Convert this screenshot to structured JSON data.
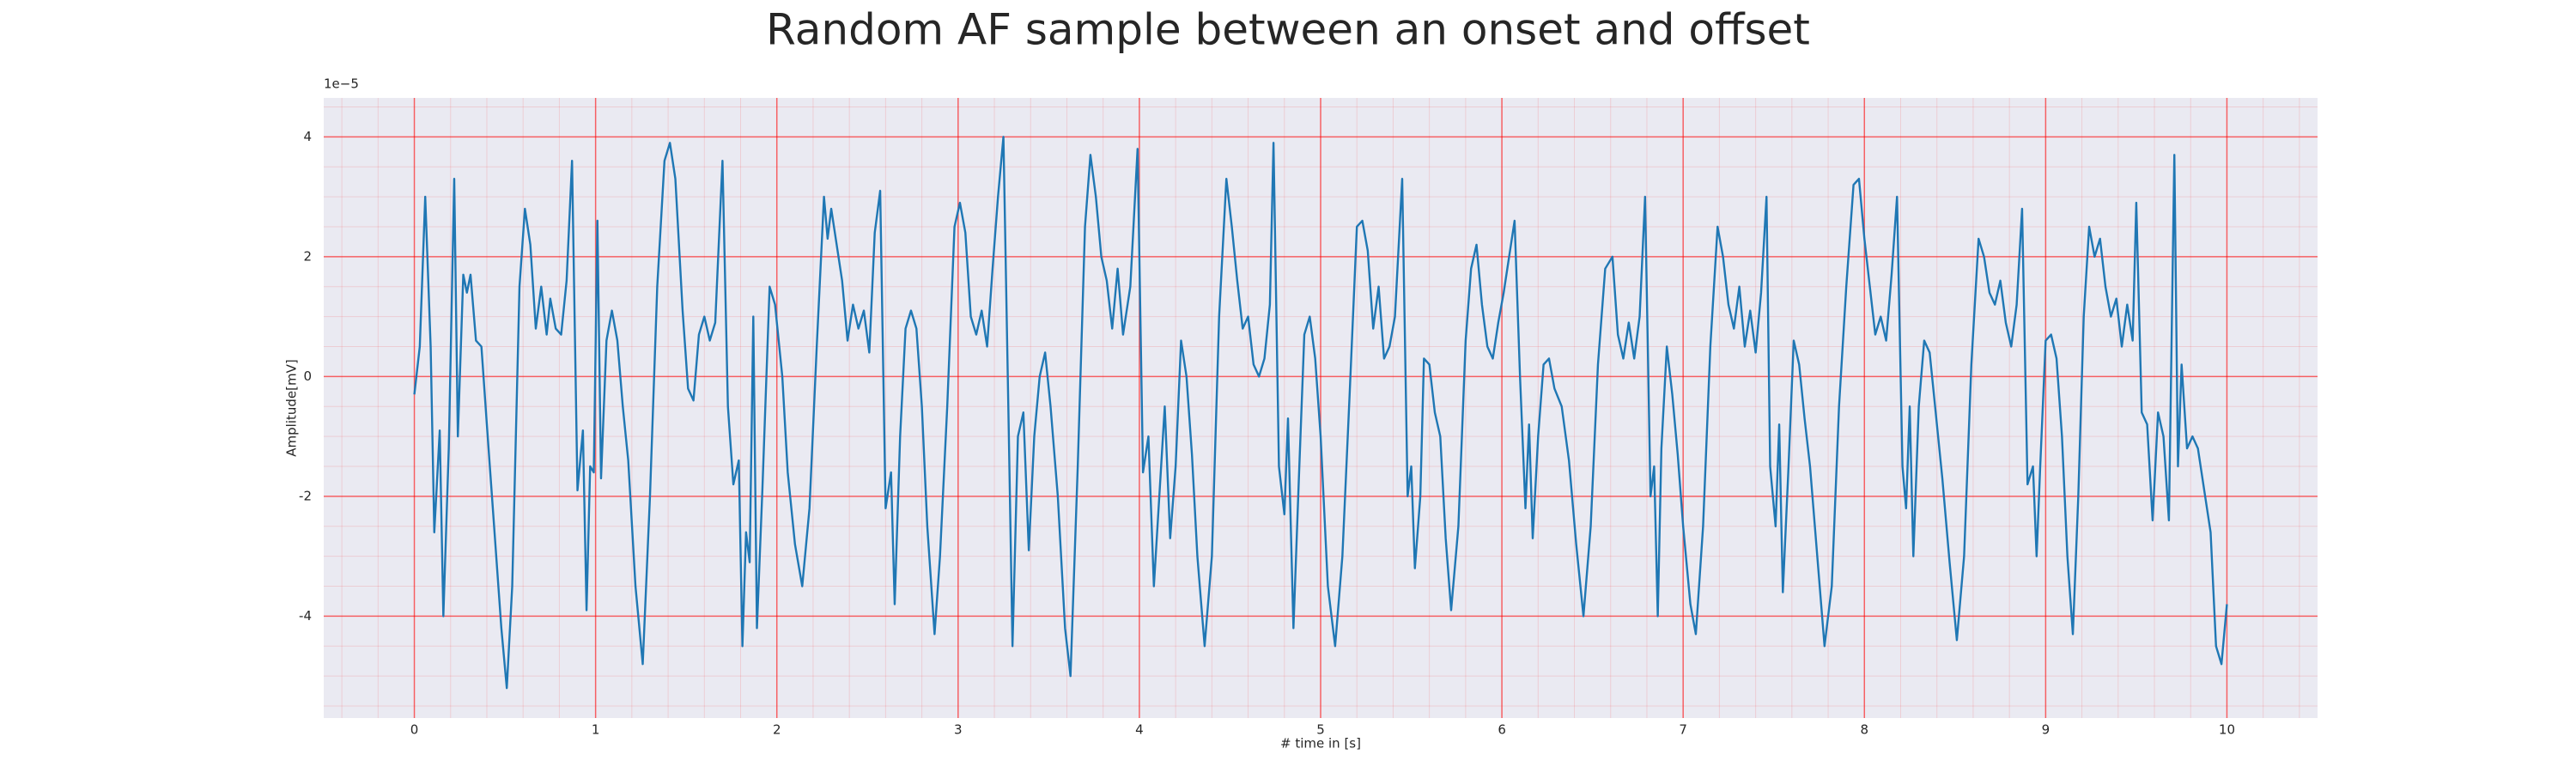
{
  "chart_data": {
    "type": "line",
    "title": "Random AF sample between an onset and offset",
    "x_label": "# time in [s]",
    "y_label": "Amplitude[mV]",
    "y_offset_label": "1e−5",
    "color": "#1f77b4",
    "grid": true,
    "minor_grid": true,
    "grid_color": "#ff0000",
    "background": "#eaeaf2",
    "xlim": [
      -0.5,
      10.5
    ],
    "ylim": [
      -5.7,
      4.65
    ],
    "xticks": [
      0,
      1,
      2,
      3,
      4,
      5,
      6,
      7,
      8,
      9,
      10
    ],
    "yticks": [
      -4,
      -2,
      0,
      2,
      4
    ],
    "x": [
      0.0,
      0.03,
      0.06,
      0.09,
      0.11,
      0.14,
      0.16,
      0.19,
      0.22,
      0.24,
      0.27,
      0.29,
      0.31,
      0.34,
      0.37,
      0.4,
      0.44,
      0.48,
      0.51,
      0.54,
      0.58,
      0.61,
      0.64,
      0.67,
      0.7,
      0.73,
      0.75,
      0.78,
      0.81,
      0.84,
      0.87,
      0.9,
      0.93,
      0.95,
      0.97,
      0.99,
      1.01,
      1.03,
      1.06,
      1.09,
      1.12,
      1.15,
      1.18,
      1.22,
      1.26,
      1.3,
      1.34,
      1.38,
      1.41,
      1.44,
      1.48,
      1.51,
      1.54,
      1.57,
      1.6,
      1.63,
      1.66,
      1.7,
      1.73,
      1.76,
      1.79,
      1.81,
      1.83,
      1.85,
      1.87,
      1.89,
      1.92,
      1.96,
      1.99,
      2.03,
      2.06,
      2.1,
      2.14,
      2.18,
      2.22,
      2.26,
      2.28,
      2.3,
      2.33,
      2.36,
      2.39,
      2.42,
      2.45,
      2.48,
      2.51,
      2.54,
      2.57,
      2.6,
      2.63,
      2.65,
      2.68,
      2.71,
      2.74,
      2.77,
      2.8,
      2.83,
      2.87,
      2.9,
      2.94,
      2.98,
      3.01,
      3.04,
      3.07,
      3.1,
      3.13,
      3.16,
      3.19,
      3.22,
      3.25,
      3.28,
      3.3,
      3.33,
      3.36,
      3.39,
      3.42,
      3.45,
      3.48,
      3.51,
      3.55,
      3.59,
      3.62,
      3.66,
      3.7,
      3.73,
      3.76,
      3.79,
      3.82,
      3.85,
      3.88,
      3.91,
      3.95,
      3.99,
      4.02,
      4.05,
      4.08,
      4.11,
      4.14,
      4.17,
      4.2,
      4.23,
      4.26,
      4.29,
      4.32,
      4.36,
      4.4,
      4.44,
      4.48,
      4.51,
      4.54,
      4.57,
      4.6,
      4.63,
      4.66,
      4.69,
      4.72,
      4.74,
      4.77,
      4.8,
      4.82,
      4.85,
      4.88,
      4.91,
      4.94,
      4.97,
      5.0,
      5.04,
      5.08,
      5.12,
      5.16,
      5.2,
      5.23,
      5.26,
      5.29,
      5.32,
      5.35,
      5.38,
      5.41,
      5.45,
      5.48,
      5.5,
      5.52,
      5.55,
      5.57,
      5.6,
      5.63,
      5.66,
      5.69,
      5.72,
      5.76,
      5.8,
      5.83,
      5.86,
      5.89,
      5.92,
      5.95,
      5.98,
      6.01,
      6.04,
      6.07,
      6.1,
      6.13,
      6.15,
      6.17,
      6.2,
      6.23,
      6.26,
      6.29,
      6.33,
      6.37,
      6.41,
      6.45,
      6.49,
      6.53,
      6.57,
      6.61,
      6.64,
      6.67,
      6.7,
      6.73,
      6.76,
      6.79,
      6.82,
      6.84,
      6.86,
      6.88,
      6.91,
      6.94,
      6.97,
      7.0,
      7.04,
      7.07,
      7.11,
      7.15,
      7.19,
      7.22,
      7.25,
      7.28,
      7.31,
      7.34,
      7.37,
      7.4,
      7.43,
      7.46,
      7.48,
      7.51,
      7.53,
      7.55,
      7.58,
      7.61,
      7.64,
      7.67,
      7.7,
      7.74,
      7.78,
      7.82,
      7.86,
      7.9,
      7.94,
      7.97,
      8.0,
      8.03,
      8.06,
      8.09,
      8.12,
      8.15,
      8.18,
      8.21,
      8.23,
      8.25,
      8.27,
      8.3,
      8.33,
      8.36,
      8.39,
      8.43,
      8.47,
      8.51,
      8.55,
      8.59,
      8.63,
      8.66,
      8.69,
      8.72,
      8.75,
      8.78,
      8.81,
      8.84,
      8.87,
      8.9,
      8.93,
      8.95,
      8.97,
      9.0,
      9.03,
      9.06,
      9.09,
      9.12,
      9.15,
      9.18,
      9.21,
      9.24,
      9.27,
      9.3,
      9.33,
      9.36,
      9.39,
      9.42,
      9.45,
      9.48,
      9.5,
      9.53,
      9.56,
      9.59,
      9.62,
      9.65,
      9.68,
      9.71,
      9.73,
      9.75,
      9.78,
      9.81,
      9.84,
      9.88,
      9.91,
      9.94,
      9.97,
      10.0
    ],
    "values": [
      -0.3,
      0.5,
      3.0,
      0.5,
      -2.6,
      -0.9,
      -4.0,
      -1.2,
      3.3,
      -1.0,
      1.7,
      1.4,
      1.7,
      0.6,
      0.5,
      -0.8,
      -2.5,
      -4.2,
      -5.2,
      -3.5,
      1.5,
      2.8,
      2.2,
      0.8,
      1.5,
      0.7,
      1.3,
      0.8,
      0.7,
      1.6,
      3.6,
      -1.9,
      -0.9,
      -3.9,
      -1.5,
      -1.6,
      2.6,
      -1.7,
      0.6,
      1.1,
      0.6,
      -0.5,
      -1.4,
      -3.5,
      -4.8,
      -2.0,
      1.5,
      3.6,
      3.9,
      3.3,
      1.1,
      -0.2,
      -0.4,
      0.7,
      1.0,
      0.6,
      0.9,
      3.6,
      -0.5,
      -1.8,
      -1.4,
      -4.5,
      -2.6,
      -3.1,
      1.0,
      -4.2,
      -1.9,
      1.5,
      1.2,
      0.0,
      -1.6,
      -2.8,
      -3.5,
      -2.2,
      0.5,
      3.0,
      2.3,
      2.8,
      2.2,
      1.6,
      0.6,
      1.2,
      0.8,
      1.1,
      0.4,
      2.4,
      3.1,
      -2.2,
      -1.6,
      -3.8,
      -1.0,
      0.8,
      1.1,
      0.8,
      -0.5,
      -2.5,
      -4.3,
      -3.0,
      -0.5,
      2.5,
      2.9,
      2.4,
      1.0,
      0.7,
      1.1,
      0.5,
      1.8,
      3.0,
      4.0,
      -1.0,
      -4.5,
      -1.0,
      -0.6,
      -2.9,
      -1.0,
      0.0,
      0.4,
      -0.5,
      -2.0,
      -4.2,
      -5.0,
      -1.5,
      2.5,
      3.7,
      3.0,
      2.0,
      1.6,
      0.8,
      1.8,
      0.7,
      1.5,
      3.8,
      -1.6,
      -1.0,
      -3.5,
      -2.0,
      -0.5,
      -2.7,
      -1.5,
      0.6,
      0.0,
      -1.3,
      -3.0,
      -4.5,
      -3.0,
      1.0,
      3.3,
      2.5,
      1.6,
      0.8,
      1.0,
      0.2,
      0.0,
      0.3,
      1.2,
      3.9,
      -1.5,
      -2.3,
      -0.7,
      -4.2,
      -1.7,
      0.7,
      1.0,
      0.3,
      -1.0,
      -3.5,
      -4.5,
      -3.0,
      -0.3,
      2.5,
      2.6,
      2.1,
      0.8,
      1.5,
      0.3,
      0.5,
      1.0,
      3.3,
      -2.0,
      -1.5,
      -3.2,
      -2.0,
      0.3,
      0.2,
      -0.6,
      -1.0,
      -2.7,
      -3.9,
      -2.5,
      0.6,
      1.8,
      2.2,
      1.2,
      0.5,
      0.3,
      0.9,
      1.4,
      2.0,
      2.6,
      0.0,
      -2.2,
      -0.8,
      -2.7,
      -1.0,
      0.2,
      0.3,
      -0.2,
      -0.5,
      -1.4,
      -2.8,
      -4.0,
      -2.5,
      0.2,
      1.8,
      2.0,
      0.7,
      0.3,
      0.9,
      0.3,
      1.0,
      3.0,
      -2.0,
      -1.5,
      -4.0,
      -1.2,
      0.5,
      -0.3,
      -1.3,
      -2.5,
      -3.8,
      -4.3,
      -2.5,
      0.5,
      2.5,
      2.0,
      1.2,
      0.8,
      1.5,
      0.5,
      1.1,
      0.4,
      1.4,
      3.0,
      -1.5,
      -2.5,
      -0.8,
      -3.6,
      -1.6,
      0.6,
      0.2,
      -0.7,
      -1.5,
      -3.0,
      -4.5,
      -3.5,
      -0.5,
      1.5,
      3.2,
      3.3,
      2.3,
      1.5,
      0.7,
      1.0,
      0.6,
      1.7,
      3.0,
      -1.5,
      -2.2,
      -0.5,
      -3.0,
      -0.5,
      0.6,
      0.4,
      -0.5,
      -1.7,
      -3.1,
      -4.4,
      -3.0,
      0.2,
      2.3,
      2.0,
      1.4,
      1.2,
      1.6,
      0.9,
      0.5,
      1.2,
      2.8,
      -1.8,
      -1.5,
      -3.0,
      -1.5,
      0.6,
      0.7,
      0.3,
      -1.0,
      -3.0,
      -4.3,
      -2.0,
      1.0,
      2.5,
      2.0,
      2.3,
      1.5,
      1.0,
      1.3,
      0.5,
      1.2,
      0.6,
      2.9,
      -0.6,
      -0.8,
      -2.4,
      -0.6,
      -1.0,
      -2.4,
      3.7,
      -1.5,
      0.2,
      -1.2,
      -1.0,
      -1.2,
      -2.0,
      -2.6,
      -4.5,
      -4.8,
      -3.8
    ]
  }
}
